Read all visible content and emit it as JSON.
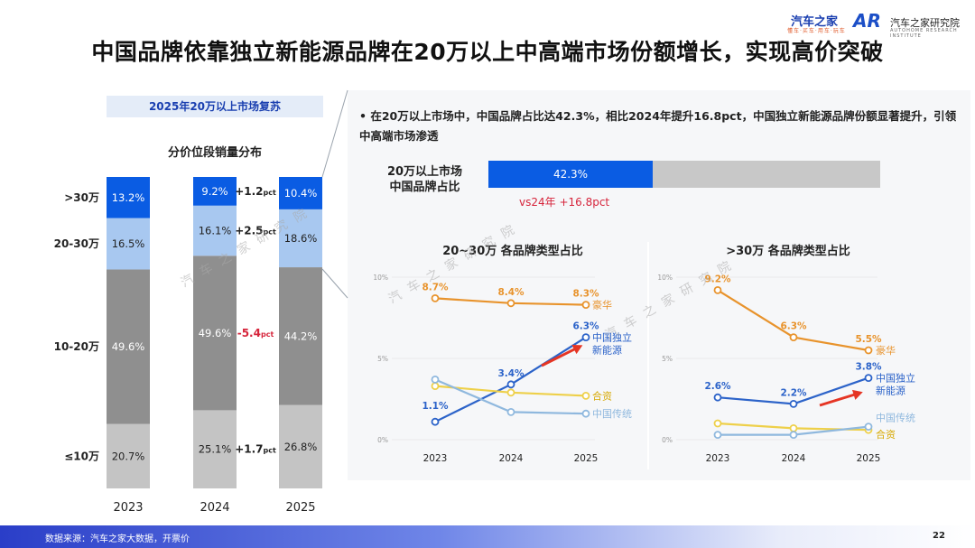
{
  "title": "中国品牌依靠独立新能源品牌在20万以上中高端市场份额增长，实现高价突破",
  "logos": {
    "brand": "汽车之家",
    "brand_sub": "懂车·买车·用车·玩车",
    "institute_mark": "AR",
    "institute": "汽车之家研究院",
    "institute_sub": "AUTOHOME RESEARCH INSTITUTE"
  },
  "watermark": "汽车之家研究院",
  "left": {
    "subtitle": "2025年20万以上市场复苏",
    "chart_title": "分价位段销量分布"
  },
  "right": {
    "bullet": "在20万以上市场中，中国品牌占比达42.3%，相比2024年提升16.8pct，中国独立新能源品牌份额显著提升，引领中高端市场渗透",
    "share_label_line1": "20万以上市场",
    "share_label_line2": "中国品牌占比",
    "share_value": "42.3%",
    "share_vs": "vs24年 +16.8pct"
  },
  "footer": {
    "source": "数据来源：汽车之家大数据，开票价",
    "page": "22"
  },
  "colors": {
    "dark_blue": "#0a5ce3",
    "light_blue": "#a8c8f0",
    "dark_gray": "#8f8f8f",
    "light_gray": "#c4c4c4",
    "orange": "#e8932c",
    "blue": "#2c63c9",
    "yellow": "#eed04a",
    "pale_blue": "#8fb8de",
    "red": "#d6243b"
  },
  "chart_data": [
    {
      "type": "bar",
      "stacked": true,
      "title": "分价位段销量分布",
      "categories": [
        "2023",
        "2024",
        "2025"
      ],
      "series": [
        {
          "name": "≤10万",
          "values": [
            20.7,
            25.1,
            26.8
          ],
          "labels": [
            "20.7%",
            "25.1%",
            "26.8%"
          ]
        },
        {
          "name": "10-20万",
          "values": [
            49.6,
            49.6,
            44.2
          ],
          "labels": [
            "49.6%",
            "49.6%",
            "44.2%"
          ]
        },
        {
          "name": "20-30万",
          "values": [
            16.5,
            16.1,
            18.6
          ],
          "labels": [
            "16.5%",
            "16.1%",
            "18.6%"
          ]
        },
        {
          "name": ">30万",
          "values": [
            13.2,
            9.2,
            10.4
          ],
          "labels": [
            "13.2%",
            "9.2%",
            "10.4%"
          ]
        }
      ],
      "segment_labels": [
        "≤10万",
        "10-20万",
        "20-30万",
        ">30万"
      ],
      "annotations": [
        {
          "series": ">30万",
          "sign": "+",
          "value": "1.2",
          "unit": "pct",
          "color": "#222222"
        },
        {
          "series": "20-30万",
          "sign": "+",
          "value": "2.5",
          "unit": "pct",
          "color": "#222222"
        },
        {
          "series": "10-20万",
          "sign": "-",
          "value": "5.4",
          "unit": "pct",
          "color": "#d6243b"
        },
        {
          "series": "≤10万",
          "sign": "+",
          "value": "1.7",
          "unit": "pct",
          "color": "#222222"
        }
      ],
      "ylim": [
        0,
        100
      ]
    },
    {
      "type": "line",
      "title": "20~30万 各品牌类型占比",
      "x": [
        "2023",
        "2024",
        "2025"
      ],
      "ylim": [
        0,
        10
      ],
      "yticks": [
        "0%",
        "5%",
        "10%"
      ],
      "series": [
        {
          "name": "豪华",
          "values": [
            8.7,
            8.4,
            8.3
          ],
          "labels": [
            "8.7%",
            "8.4%",
            "8.3%"
          ]
        },
        {
          "name": "中国独立新能源",
          "name_lines": [
            "中国独立",
            "新能源"
          ],
          "values": [
            1.1,
            3.4,
            6.3
          ],
          "labels": [
            "1.1%",
            "3.4%",
            "6.3%"
          ]
        },
        {
          "name": "合资",
          "values": [
            3.3,
            2.9,
            2.7
          ],
          "labels": []
        },
        {
          "name": "中国传统",
          "values": [
            3.7,
            1.7,
            1.6
          ],
          "labels": []
        }
      ]
    },
    {
      "type": "line",
      "title": ">30万 各品牌类型占比",
      "x": [
        "2023",
        "2024",
        "2025"
      ],
      "ylim": [
        0,
        10
      ],
      "yticks": [
        "0%",
        "5%",
        "10%"
      ],
      "series": [
        {
          "name": "豪华",
          "values": [
            9.2,
            6.3,
            5.5
          ],
          "labels": [
            "9.2%",
            "6.3%",
            "5.5%"
          ]
        },
        {
          "name": "中国独立新能源",
          "name_lines": [
            "中国独立",
            "新能源"
          ],
          "values": [
            2.6,
            2.2,
            3.8
          ],
          "labels": [
            "2.6%",
            "2.2%",
            "3.8%"
          ]
        },
        {
          "name": "合资",
          "values": [
            1.0,
            0.7,
            0.6
          ],
          "labels": []
        },
        {
          "name": "中国传统",
          "values": [
            0.3,
            0.3,
            0.8
          ],
          "labels": []
        }
      ]
    }
  ]
}
